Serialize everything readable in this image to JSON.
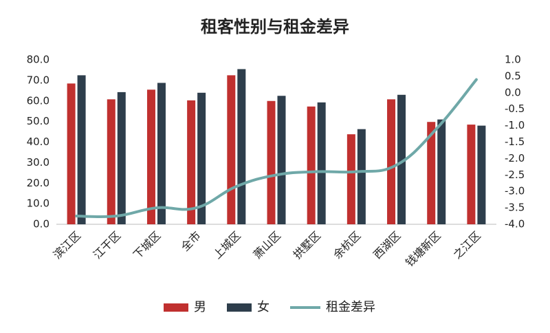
{
  "chart_data": {
    "type": "bar",
    "title": "租客性别与租金差异",
    "categories": [
      "滨江区",
      "江干区",
      "下城区",
      "全市",
      "上城区",
      "萧山区",
      "拱墅区",
      "余杭区",
      "西湖区",
      "钱塘新区",
      "之江区"
    ],
    "series": [
      {
        "name": "男",
        "color": "#c0302f",
        "values": [
          68.5,
          60.8,
          65.5,
          60.3,
          72.5,
          60.0,
          57.3,
          43.8,
          60.8,
          49.8,
          48.5
        ]
      },
      {
        "name": "女",
        "color": "#2e3e4c",
        "values": [
          72.5,
          64.3,
          68.8,
          64.0,
          75.5,
          62.5,
          59.3,
          46.3,
          63.0,
          51.0,
          48.0
        ]
      },
      {
        "name": "租金差异",
        "type": "line",
        "axis": "y2",
        "color": "#6fa8a8",
        "values": [
          -3.75,
          -3.75,
          -3.5,
          -3.5,
          -2.85,
          -2.5,
          -2.4,
          -2.4,
          -2.2,
          -1.1,
          0.4
        ]
      }
    ],
    "ylim": [
      0,
      80
    ],
    "yticks": [
      {
        "value": 0,
        "label": "0.0"
      },
      {
        "value": 10,
        "label": "10.0"
      },
      {
        "value": 20,
        "label": "20.0"
      },
      {
        "value": 30,
        "label": "30.0"
      },
      {
        "value": 40,
        "label": "40.0"
      },
      {
        "value": 50,
        "label": "50.0"
      },
      {
        "value": 60,
        "label": "60.0"
      },
      {
        "value": 70,
        "label": "70.0"
      },
      {
        "value": 80,
        "label": "80.0"
      }
    ],
    "y2lim": [
      -4,
      1
    ],
    "y2ticks": [
      {
        "value": -4,
        "label": "-4.0"
      },
      -3.5,
      {
        "value": -3,
        "label": "-3.0"
      },
      -2.5,
      {
        "value": -2,
        "label": "-2.0"
      },
      -1.5,
      {
        "value": -1,
        "label": "-1.0"
      },
      -0.5,
      {
        "value": 0,
        "label": "0.0"
      },
      0.5,
      {
        "value": 1,
        "label": "1.0"
      }
    ],
    "grid": false,
    "legend": "bottom"
  }
}
